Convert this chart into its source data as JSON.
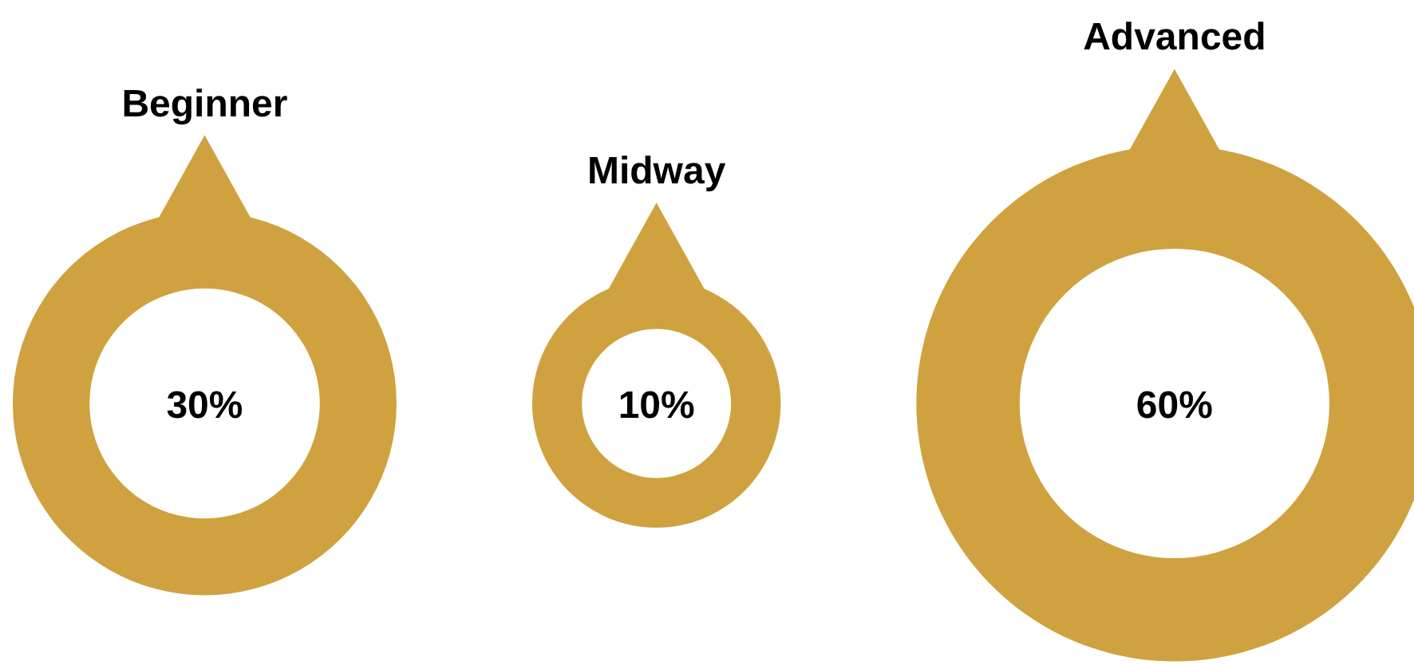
{
  "chart_data": {
    "type": "other",
    "categories": [
      "Beginner",
      "Midway",
      "Advanced"
    ],
    "values": [
      30,
      10,
      60
    ],
    "value_labels": [
      "30%",
      "10%",
      "60%"
    ],
    "colors": [
      "#cfa23f",
      "#cfa23f",
      "#cfa23f"
    ]
  }
}
